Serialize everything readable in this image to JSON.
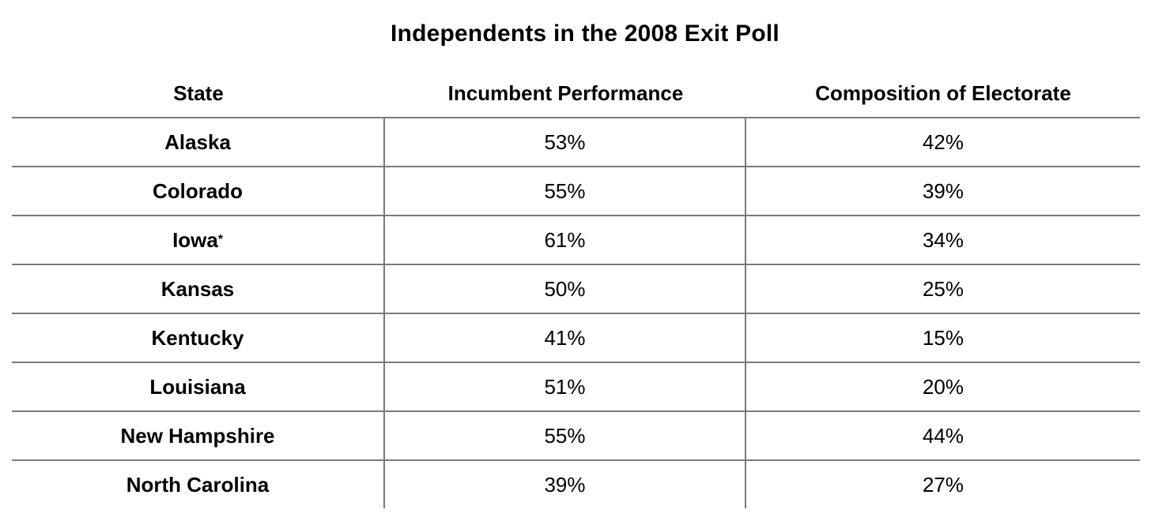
{
  "title": "Independents in the 2008 Exit Poll",
  "table": {
    "columns": {
      "state": "State",
      "incumbent": "Incumbent Performance",
      "composition": "Composition of Electorate"
    },
    "rows": [
      {
        "state": "Alaska",
        "marker": "",
        "incumbent": "53%",
        "composition": "42%"
      },
      {
        "state": "Colorado",
        "marker": "",
        "incumbent": "55%",
        "composition": "39%"
      },
      {
        "state": "Iowa",
        "marker": "*",
        "incumbent": "61%",
        "composition": "34%"
      },
      {
        "state": "Kansas",
        "marker": "",
        "incumbent": "50%",
        "composition": "25%"
      },
      {
        "state": "Kentucky",
        "marker": "",
        "incumbent": "41%",
        "composition": "15%"
      },
      {
        "state": "Louisiana",
        "marker": "",
        "incumbent": "51%",
        "composition": "20%"
      },
      {
        "state": "New Hampshire",
        "marker": "",
        "incumbent": "55%",
        "composition": "44%"
      },
      {
        "state": "North Carolina",
        "marker": "",
        "incumbent": "39%",
        "composition": "27%"
      }
    ]
  },
  "colors": {
    "line": "#7a7a7a",
    "text": "#000000",
    "background": "#ffffff"
  },
  "chart_data": {
    "type": "table",
    "title": "Independents in the 2008 Exit Poll",
    "columns": [
      "State",
      "Incumbent Performance",
      "Composition of Electorate"
    ],
    "rows": [
      [
        "Alaska",
        "53%",
        "42%"
      ],
      [
        "Colorado",
        "55%",
        "39%"
      ],
      [
        "Iowa*",
        "61%",
        "34%"
      ],
      [
        "Kansas",
        "50%",
        "25%"
      ],
      [
        "Kentucky",
        "41%",
        "15%"
      ],
      [
        "Louisiana",
        "51%",
        "20%"
      ],
      [
        "New Hampshire",
        "55%",
        "44%"
      ],
      [
        "North Carolina",
        "39%",
        "27%"
      ]
    ]
  }
}
